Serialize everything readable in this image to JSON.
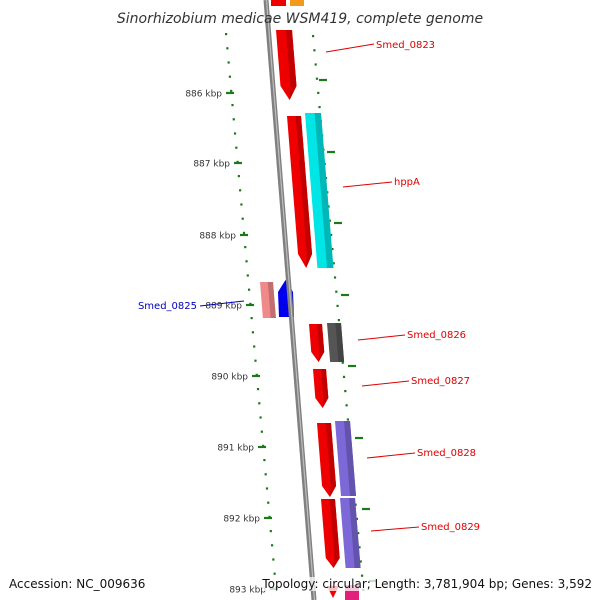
{
  "title": "Sinorhizobium medicae WSM419, complete genome",
  "footer": {
    "accession": "Accession: NC_009636",
    "topology": "Topology: circular; Length: 3,781,904 bp; Genes: 3,592"
  },
  "colors": {
    "backbone": "#808080",
    "tick": "#1a7a1a",
    "label_red": "#dd0000",
    "label_blue": "#0000bb",
    "red_gene": "#ee0000",
    "cyan_gene": "#00e5e5",
    "grey_gene": "#555555",
    "purple_gene": "#7d68d8",
    "blue_gene": "#0000ee",
    "pink_gene": "#f08a8a"
  },
  "kbp_ticks": [
    "886 kbp",
    "887 kbp",
    "888 kbp",
    "889 kbp",
    "890 kbp",
    "891 kbp",
    "892 kbp",
    "893 kbp"
  ],
  "genes": [
    {
      "label": "Smed_0823",
      "label_color": "red"
    },
    {
      "label": "hppA",
      "label_color": "red"
    },
    {
      "label": "Smed_0825",
      "label_color": "blue"
    },
    {
      "label": "Smed_0826",
      "label_color": "red"
    },
    {
      "label": "Smed_0827",
      "label_color": "red"
    },
    {
      "label": "Smed_0828",
      "label_color": "red"
    },
    {
      "label": "Smed_0829",
      "label_color": "red"
    }
  ]
}
